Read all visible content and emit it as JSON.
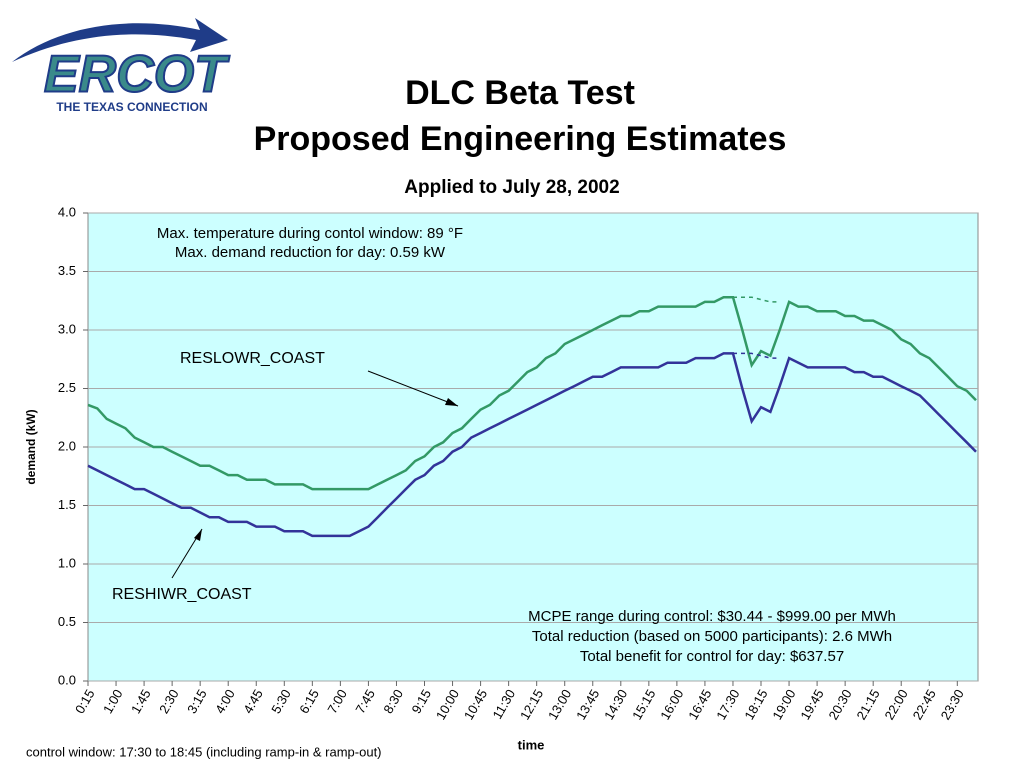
{
  "logo": {
    "name": "ERCOT",
    "tagline": "THE TEXAS CONNECTION"
  },
  "chart_data": {
    "type": "line",
    "title": [
      "DLC Beta Test",
      "Proposed Engineering Estimates"
    ],
    "subtitle": "Applied to July 28, 2002",
    "y_label": "demand (kW)",
    "x_label": "time",
    "footnote": "control window: 17:30 to 18:45  (including ramp-in & ramp-out)",
    "notes_top": [
      "Max. temperature during contol window:  89 °F",
      "Max. demand reduction for day:  0.59 kW"
    ],
    "notes_bottom": [
      "MCPE range during control: $30.44 - $999.00 per MWh",
      "Total reduction (based on 5000 participants):  2.6 MWh",
      "Total benefit for control for day: $637.57"
    ],
    "categories": [
      "0:15",
      null,
      null,
      "1:00",
      null,
      null,
      "1:45",
      null,
      null,
      "2:30",
      null,
      null,
      "3:15",
      null,
      null,
      "4:00",
      null,
      null,
      "4:45",
      null,
      null,
      "5:30",
      null,
      null,
      "6:15",
      null,
      null,
      "7:00",
      null,
      null,
      "7:45",
      null,
      null,
      "8:30",
      null,
      null,
      "9:15",
      null,
      null,
      "10:00",
      null,
      null,
      "10:45",
      null,
      null,
      "11:30",
      null,
      null,
      "12:15",
      null,
      null,
      "13:00",
      null,
      null,
      "13:45",
      null,
      null,
      "14:30",
      null,
      null,
      "15:15",
      null,
      null,
      "16:00",
      null,
      null,
      "16:45",
      null,
      null,
      "17:30",
      null,
      null,
      "18:15",
      null,
      null,
      "19:00",
      null,
      null,
      "19:45",
      null,
      null,
      "20:30",
      null,
      null,
      "21:15",
      null,
      null,
      "22:00",
      null,
      null,
      "22:45",
      null,
      null,
      "23:30",
      null,
      null
    ],
    "series": [
      {
        "name": "RESLOWR_COAST",
        "color": "#339966",
        "values": [
          2.36,
          2.33,
          2.24,
          2.2,
          2.16,
          2.08,
          2.04,
          2.0,
          2.0,
          1.96,
          1.92,
          1.88,
          1.84,
          1.84,
          1.8,
          1.76,
          1.76,
          1.72,
          1.72,
          1.72,
          1.68,
          1.68,
          1.68,
          1.68,
          1.64,
          1.64,
          1.64,
          1.64,
          1.64,
          1.64,
          1.64,
          1.68,
          1.72,
          1.76,
          1.8,
          1.88,
          1.92,
          2.0,
          2.04,
          2.12,
          2.16,
          2.24,
          2.32,
          2.36,
          2.44,
          2.48,
          2.56,
          2.64,
          2.68,
          2.76,
          2.8,
          2.88,
          2.92,
          2.96,
          3.0,
          3.04,
          3.08,
          3.12,
          3.12,
          3.16,
          3.16,
          3.2,
          3.2,
          3.2,
          3.2,
          3.2,
          3.24,
          3.24,
          3.28,
          3.28,
          3.0,
          2.7,
          2.82,
          2.78,
          3.0,
          3.24,
          3.2,
          3.2,
          3.16,
          3.16,
          3.16,
          3.12,
          3.12,
          3.08,
          3.08,
          3.04,
          3.0,
          2.92,
          2.88,
          2.8,
          2.76,
          2.68,
          2.6,
          2.52,
          2.48,
          2.4
        ]
      },
      {
        "name": "RESHIWR_COAST",
        "color": "#333399",
        "values": [
          1.84,
          1.8,
          1.76,
          1.72,
          1.68,
          1.64,
          1.64,
          1.6,
          1.56,
          1.52,
          1.48,
          1.48,
          1.44,
          1.4,
          1.4,
          1.36,
          1.36,
          1.36,
          1.32,
          1.32,
          1.32,
          1.28,
          1.28,
          1.28,
          1.24,
          1.24,
          1.24,
          1.24,
          1.24,
          1.28,
          1.32,
          1.4,
          1.48,
          1.56,
          1.64,
          1.72,
          1.76,
          1.84,
          1.88,
          1.96,
          2.0,
          2.08,
          2.12,
          2.16,
          2.2,
          2.24,
          2.28,
          2.32,
          2.36,
          2.4,
          2.44,
          2.48,
          2.52,
          2.56,
          2.6,
          2.6,
          2.64,
          2.68,
          2.68,
          2.68,
          2.68,
          2.68,
          2.72,
          2.72,
          2.72,
          2.76,
          2.76,
          2.76,
          2.8,
          2.8,
          2.5,
          2.22,
          2.34,
          2.3,
          2.52,
          2.76,
          2.72,
          2.68,
          2.68,
          2.68,
          2.68,
          2.68,
          2.64,
          2.64,
          2.6,
          2.6,
          2.56,
          2.52,
          2.48,
          2.44,
          2.36,
          2.28,
          2.2,
          2.12,
          2.04,
          1.96
        ]
      },
      {
        "color": "#339966",
        "dash": true,
        "values": [
          null,
          null,
          null,
          null,
          null,
          null,
          null,
          null,
          null,
          null,
          null,
          null,
          null,
          null,
          null,
          null,
          null,
          null,
          null,
          null,
          null,
          null,
          null,
          null,
          null,
          null,
          null,
          null,
          null,
          null,
          null,
          null,
          null,
          null,
          null,
          null,
          null,
          null,
          null,
          null,
          null,
          null,
          null,
          null,
          null,
          null,
          null,
          null,
          null,
          null,
          null,
          null,
          null,
          null,
          null,
          null,
          null,
          null,
          null,
          null,
          null,
          null,
          null,
          null,
          null,
          null,
          null,
          null,
          null,
          3.28,
          3.28,
          3.28,
          3.26,
          3.24,
          3.24,
          null,
          null,
          null,
          null,
          null,
          null,
          null,
          null,
          null,
          null,
          null,
          null,
          null,
          null,
          null,
          null,
          null,
          null,
          null,
          null,
          null
        ]
      },
      {
        "color": "#333399",
        "dash": true,
        "values": [
          null,
          null,
          null,
          null,
          null,
          null,
          null,
          null,
          null,
          null,
          null,
          null,
          null,
          null,
          null,
          null,
          null,
          null,
          null,
          null,
          null,
          null,
          null,
          null,
          null,
          null,
          null,
          null,
          null,
          null,
          null,
          null,
          null,
          null,
          null,
          null,
          null,
          null,
          null,
          null,
          null,
          null,
          null,
          null,
          null,
          null,
          null,
          null,
          null,
          null,
          null,
          null,
          null,
          null,
          null,
          null,
          null,
          null,
          null,
          null,
          null,
          null,
          null,
          null,
          null,
          null,
          null,
          null,
          null,
          2.8,
          2.8,
          2.8,
          2.78,
          2.76,
          2.76,
          null,
          null,
          null,
          null,
          null,
          null,
          null,
          null,
          null,
          null,
          null,
          null,
          null,
          null,
          null,
          null,
          null,
          null,
          null,
          null,
          null
        ]
      }
    ],
    "ylim": [
      0,
      4
    ],
    "yticks": [
      {
        "value": 0,
        "label": "0.0"
      },
      0.5,
      {
        "value": 1,
        "label": "1.0"
      },
      1.5,
      {
        "value": 2,
        "label": "2.0"
      },
      2.5,
      {
        "value": 3,
        "label": "3.0"
      },
      3.5,
      {
        "value": 4,
        "label": "4.0"
      }
    ],
    "grid": true
  }
}
